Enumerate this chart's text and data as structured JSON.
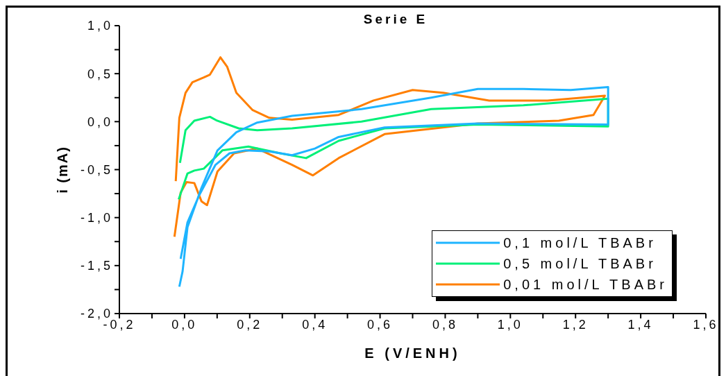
{
  "chart_data": {
    "type": "line",
    "title": "Serie E",
    "xlabel": "E (V/ENH)",
    "ylabel": "i (mA)",
    "xlim": [
      -0.2,
      1.6
    ],
    "ylim": [
      -2.0,
      1.0
    ],
    "xticks": [
      {
        "value": -0.2,
        "label": "-0,2"
      },
      {
        "value": 0,
        "label": "0,0"
      },
      {
        "value": 0.2,
        "label": "0,2"
      },
      {
        "value": 0.4,
        "label": "0,4"
      },
      {
        "value": 0.6,
        "label": "0,6"
      },
      {
        "value": 0.8,
        "label": "0,8"
      },
      {
        "value": 1.0,
        "label": "1,0"
      },
      {
        "value": 1.2,
        "label": "1,2"
      },
      {
        "value": 1.4,
        "label": "1,4"
      },
      {
        "value": 1.6,
        "label": "1,6"
      }
    ],
    "yticks": [
      {
        "value": -2.0,
        "label": "-2,0"
      },
      {
        "value": -1.5,
        "label": "-1,5"
      },
      {
        "value": -1.0,
        "label": "-1,0"
      },
      {
        "value": -0.5,
        "label": "-0,5"
      },
      {
        "value": 0,
        "label": "0,0"
      },
      {
        "value": 0.5,
        "label": "0,5"
      },
      {
        "value": 1.0,
        "label": "1,0"
      }
    ],
    "grid": false,
    "legend": "bottom right",
    "series": [
      {
        "name": "0,1 mol/L TBABr",
        "color": "#1eb4ff",
        "x": [
          -0.016,
          -0.006,
          0.009,
          0.052,
          0.101,
          0.159,
          0.223,
          0.33,
          0.543,
          0.757,
          0.9,
          1.04,
          1.185,
          1.3,
          1.3,
          0.9,
          0.614,
          0.473,
          0.4,
          0.33,
          0.26,
          0.187,
          0.138,
          0.095,
          0.046,
          0.009,
          -0.012
        ],
        "values": [
          -1.72,
          -1.56,
          -1.1,
          -0.69,
          -0.3,
          -0.11,
          -0.01,
          0.06,
          0.13,
          0.25,
          0.34,
          0.34,
          0.33,
          0.36,
          -0.03,
          -0.02,
          -0.06,
          -0.16,
          -0.28,
          -0.35,
          -0.31,
          -0.3,
          -0.33,
          -0.45,
          -0.76,
          -1.05,
          -1.43
        ]
      },
      {
        "name": "0,5 mol/L TBABr",
        "color": "#00f078",
        "x": [
          -0.014,
          0.003,
          0.03,
          0.078,
          0.1,
          0.166,
          0.223,
          0.33,
          0.543,
          0.757,
          1.04,
          1.3,
          1.3,
          0.9,
          0.614,
          0.473,
          0.373,
          0.294,
          0.196,
          0.116,
          0.059,
          0.03,
          0.009,
          -0.018
        ],
        "values": [
          -0.43,
          -0.09,
          0.01,
          0.05,
          0.01,
          -0.07,
          -0.09,
          -0.07,
          0.0,
          0.13,
          0.17,
          0.24,
          -0.05,
          -0.03,
          -0.07,
          -0.2,
          -0.38,
          -0.33,
          -0.26,
          -0.3,
          -0.49,
          -0.51,
          -0.54,
          -0.81
        ]
      },
      {
        "name": "0,01 mol/L TBABr",
        "color": "#ff7f00",
        "x": [
          -0.027,
          -0.016,
          0.003,
          0.024,
          0.059,
          0.078,
          0.11,
          0.131,
          0.159,
          0.209,
          0.26,
          0.33,
          0.473,
          0.58,
          0.7,
          0.794,
          0.935,
          1.114,
          1.29,
          1.255,
          1.149,
          0.9,
          0.614,
          0.473,
          0.394,
          0.33,
          0.223,
          0.152,
          0.101,
          0.069,
          0.052,
          0.03,
          0.006,
          -0.012,
          -0.031
        ],
        "values": [
          -0.62,
          0.04,
          0.3,
          0.41,
          0.46,
          0.49,
          0.67,
          0.57,
          0.3,
          0.12,
          0.04,
          0.02,
          0.07,
          0.22,
          0.33,
          0.3,
          0.22,
          0.22,
          0.27,
          0.07,
          0.01,
          -0.02,
          -0.13,
          -0.38,
          -0.56,
          -0.45,
          -0.28,
          -0.33,
          -0.52,
          -0.87,
          -0.83,
          -0.64,
          -0.63,
          -0.74,
          -1.2
        ]
      }
    ]
  }
}
